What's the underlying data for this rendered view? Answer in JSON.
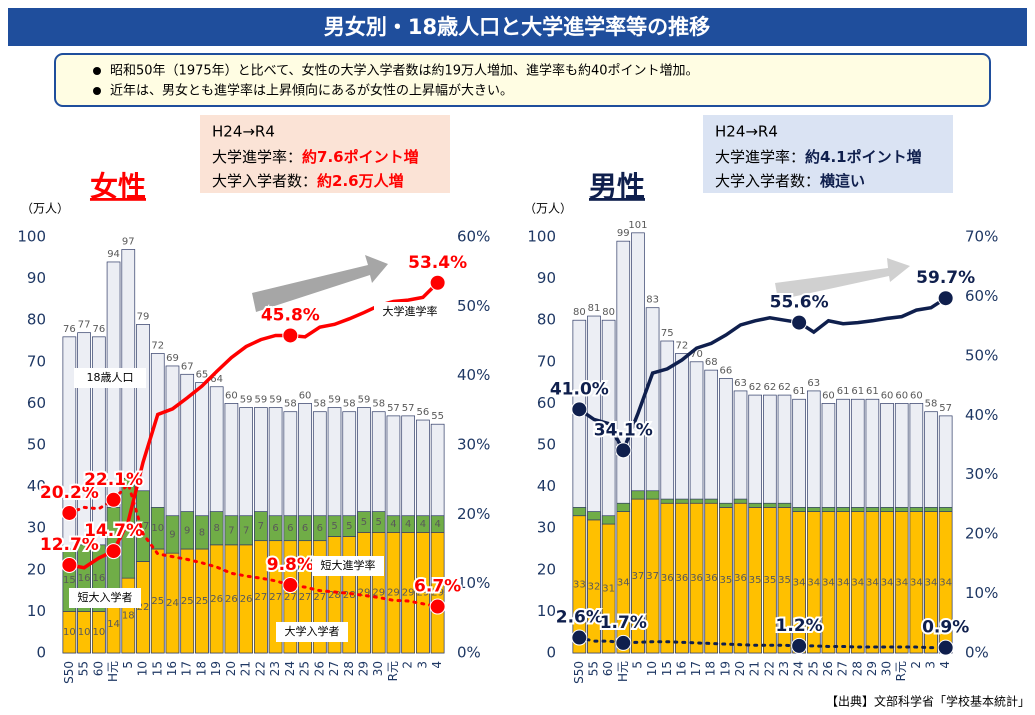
{
  "header": {
    "title": "男女別・18歳人口と大学進学率等の推移"
  },
  "bullets": [
    "昭和50年（1975年）と比べて、女性の大学入学者数は約19万人増加、進学率も約40ポイント増加。",
    "近年は、男女とも進学率は上昇傾向にあるが女性の上昇幅が大きい。"
  ],
  "source": "【出典】文部科学省「学校基本統計」",
  "chart_data": [
    {
      "type": "combo",
      "title": "女性",
      "title_color": "#ff0000",
      "y_label": "（万人）",
      "summary": {
        "heading": "H24→R4",
        "color": "#fbe3d6",
        "value_color": "#ff0000",
        "lines": [
          {
            "label": "大学進学率：",
            "value": "約7.6ポイント増"
          },
          {
            "label": "大学入学者数：",
            "value": "約2.6万人増"
          }
        ]
      },
      "categories": [
        "S50",
        "55",
        "60",
        "H元",
        "5",
        "10",
        "15",
        "16",
        "17",
        "18",
        "19",
        "20",
        "21",
        "22",
        "23",
        "24",
        "25",
        "26",
        "27",
        "28",
        "29",
        "30",
        "R元",
        "2",
        "3",
        "4"
      ],
      "ylim": [
        0,
        100
      ],
      "yticks": [
        0,
        10,
        20,
        30,
        40,
        50,
        60,
        70,
        80,
        90,
        100
      ],
      "y2lim": [
        0,
        60
      ],
      "y2ticks": [
        {
          "value": 0,
          "label": "0%"
        },
        {
          "value": 10,
          "label": "10%"
        },
        {
          "value": 20,
          "label": "20%"
        },
        {
          "value": 30,
          "label": "30%"
        },
        {
          "value": 40,
          "label": "40%"
        },
        {
          "value": 50,
          "label": "50%"
        },
        {
          "value": 60,
          "label": "60%"
        }
      ],
      "series": [
        {
          "name": "18歳人口",
          "type": "bar",
          "color": "#eceef4",
          "labels": true,
          "values": [
            76,
            77,
            76,
            94,
            97,
            79,
            72,
            69,
            67,
            65,
            64,
            60,
            59,
            59,
            59,
            58,
            60,
            58,
            59,
            58,
            59,
            58,
            57,
            57,
            56,
            55
          ]
        },
        {
          "name": "大学入学者",
          "type": "bar",
          "stack": "entrants",
          "color": "#ffc000",
          "labels": true,
          "values": [
            10,
            10,
            10,
            14,
            18,
            22,
            25,
            24,
            25,
            25,
            26,
            26,
            26,
            27,
            27,
            27,
            27,
            27,
            28,
            28,
            29,
            29,
            29,
            29,
            29,
            29
          ]
        },
        {
          "name": "短大入学者",
          "type": "bar",
          "stack": "entrants",
          "color": "#70ad47",
          "labels": true,
          "values": [
            15,
            16,
            16,
            21,
            24,
            17,
            10,
            9,
            9,
            8,
            8,
            7,
            7,
            7,
            6,
            6,
            6,
            6,
            5,
            5,
            5,
            5,
            4,
            4,
            4,
            4
          ]
        },
        {
          "name": "大学進学率",
          "type": "line",
          "axis": "y2",
          "color": "#ff0000",
          "values": [
            12.7,
            12.3,
            13.7,
            14.7,
            19.0,
            27.5,
            34.4,
            35.2,
            36.8,
            38.5,
            40.6,
            42.6,
            44.2,
            45.2,
            45.8,
            45.8,
            45.6,
            47.0,
            47.4,
            48.2,
            49.1,
            50.1,
            50.7,
            50.9,
            51.3,
            53.4
          ],
          "value_labels": [
            "12.7%",
            null,
            null,
            "14.7%",
            null,
            null,
            null,
            null,
            null,
            null,
            null,
            null,
            null,
            null,
            null,
            "45.8%",
            null,
            null,
            null,
            null,
            null,
            null,
            null,
            null,
            null,
            "53.4%"
          ]
        },
        {
          "name": "短大進学率",
          "type": "line",
          "axis": "y2",
          "dash": true,
          "color": "#ff0000",
          "values": [
            20.2,
            21.0,
            20.8,
            22.1,
            24.4,
            17.2,
            14.3,
            13.9,
            13.5,
            13.0,
            12.4,
            11.5,
            11.1,
            10.8,
            10.4,
            9.8,
            9.5,
            9.0,
            8.8,
            8.6,
            8.3,
            8.0,
            7.6,
            7.5,
            7.1,
            6.7
          ],
          "value_labels": [
            "20.2%",
            null,
            null,
            "22.1%",
            null,
            null,
            null,
            null,
            null,
            null,
            null,
            null,
            null,
            null,
            null,
            "9.8%",
            null,
            null,
            null,
            null,
            null,
            null,
            null,
            null,
            null,
            "6.7%"
          ]
        }
      ]
    },
    {
      "type": "combo",
      "title": "男性",
      "title_color": "#0f1f4d",
      "y_label": "（万人）",
      "summary": {
        "heading": "H24→R4",
        "color": "#dae3f3",
        "value_color": "#0f1f4d",
        "lines": [
          {
            "label": "大学進学率：",
            "value": "約4.1ポイント増"
          },
          {
            "label": "大学入学者数：",
            "value": "横這い"
          }
        ]
      },
      "categories": [
        "S50",
        "55",
        "60",
        "H元",
        "5",
        "10",
        "15",
        "16",
        "17",
        "18",
        "19",
        "20",
        "21",
        "22",
        "23",
        "24",
        "25",
        "26",
        "27",
        "28",
        "29",
        "30",
        "R元",
        "2",
        "3",
        "4"
      ],
      "ylim": [
        0,
        100
      ],
      "yticks": [
        0,
        10,
        20,
        30,
        40,
        50,
        60,
        70,
        80,
        90,
        100
      ],
      "y2lim": [
        0,
        70
      ],
      "y2ticks": [
        {
          "value": 0,
          "label": "0%"
        },
        {
          "value": 10,
          "label": "10%"
        },
        {
          "value": 20,
          "label": "20%"
        },
        {
          "value": 30,
          "label": "30%"
        },
        {
          "value": 40,
          "label": "40%"
        },
        {
          "value": 50,
          "label": "50%"
        },
        {
          "value": 60,
          "label": "60%"
        },
        {
          "value": 70,
          "label": "70%"
        }
      ],
      "series": [
        {
          "type": "bar",
          "color": "#eceef4",
          "labels": true,
          "values": [
            80,
            81,
            80,
            99,
            101,
            83,
            75,
            72,
            70,
            68,
            66,
            63,
            62,
            62,
            62,
            61,
            63,
            60,
            61,
            61,
            61,
            60,
            60,
            60,
            58,
            57
          ]
        },
        {
          "type": "bar",
          "stack": "entrants",
          "color": "#ffc000",
          "labels": true,
          "values": [
            33,
            32,
            31,
            34,
            37,
            37,
            36,
            36,
            36,
            36,
            35,
            36,
            35,
            35,
            35,
            34,
            34,
            34,
            34,
            34,
            34,
            34,
            34,
            34,
            34,
            34
          ]
        },
        {
          "type": "bar",
          "stack": "entrants",
          "color": "#70ad47",
          "labels": false,
          "values": [
            2,
            2,
            2,
            2,
            2,
            2,
            1,
            1,
            1,
            1,
            1,
            1,
            1,
            1,
            1,
            1,
            1,
            1,
            1,
            1,
            1,
            1,
            1,
            1,
            1,
            1
          ]
        },
        {
          "type": "line",
          "axis": "y2",
          "color": "#0f1f4d",
          "values": [
            41.0,
            39.3,
            38.6,
            34.1,
            40.3,
            47.1,
            47.8,
            49.3,
            51.3,
            52.1,
            53.5,
            55.2,
            55.9,
            56.4,
            56.0,
            55.6,
            54.0,
            55.9,
            55.4,
            55.6,
            55.9,
            56.3,
            56.6,
            57.7,
            58.1,
            59.7
          ],
          "value_labels": [
            "41.0%",
            null,
            null,
            "34.1%",
            null,
            null,
            null,
            null,
            null,
            null,
            null,
            null,
            null,
            null,
            null,
            "55.6%",
            null,
            null,
            null,
            null,
            null,
            null,
            null,
            null,
            null,
            "59.7%"
          ]
        },
        {
          "type": "line",
          "axis": "y2",
          "dash": true,
          "color": "#0f1f4d",
          "values": [
            2.6,
            2.0,
            2.0,
            1.7,
            1.8,
            1.9,
            1.9,
            1.8,
            1.7,
            1.6,
            1.5,
            1.4,
            1.3,
            1.3,
            1.3,
            1.2,
            1.2,
            1.1,
            1.1,
            1.0,
            1.0,
            1.0,
            1.0,
            1.0,
            0.9,
            0.9
          ],
          "value_labels": [
            "2.6%",
            null,
            null,
            "1.7%",
            null,
            null,
            null,
            null,
            null,
            null,
            null,
            null,
            null,
            null,
            null,
            "1.2%",
            null,
            null,
            null,
            null,
            null,
            null,
            null,
            null,
            null,
            "0.9%"
          ]
        }
      ]
    }
  ]
}
